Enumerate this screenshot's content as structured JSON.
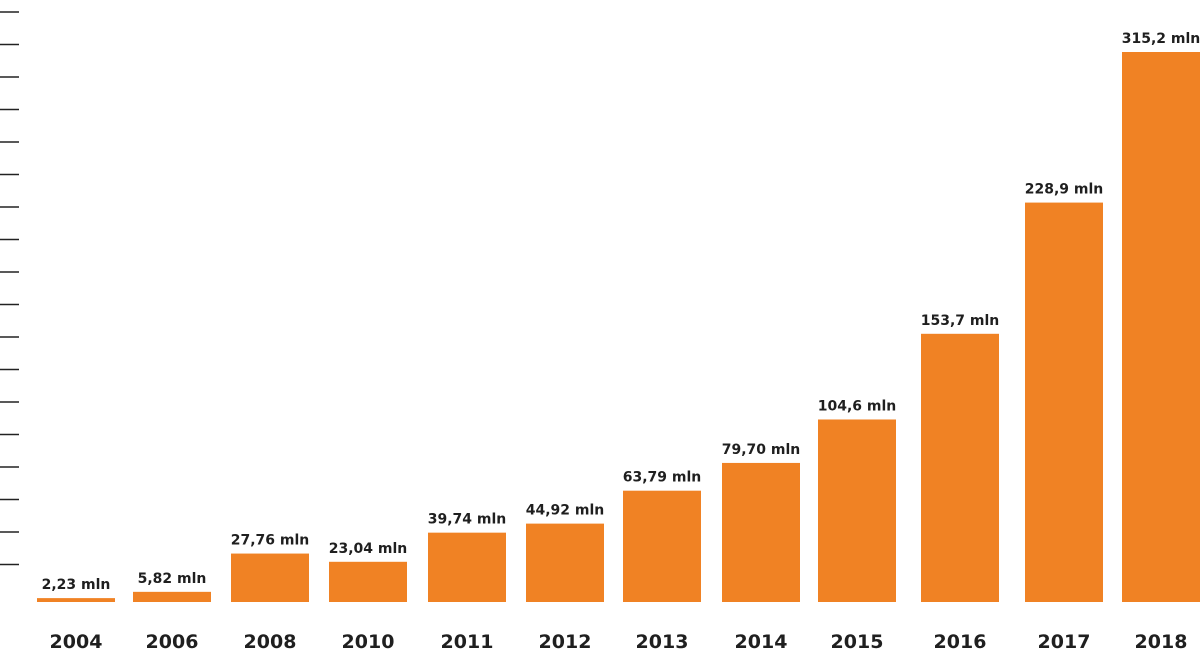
{
  "chart_data": {
    "type": "bar",
    "title": "",
    "xlabel": "",
    "ylabel": "",
    "categories": [
      "2004",
      "2006",
      "2008",
      "2010",
      "2011",
      "2012",
      "2013",
      "2014",
      "2015",
      "2016",
      "2017",
      "2018"
    ],
    "values": [
      2.23,
      5.82,
      27.76,
      23.04,
      39.74,
      44.92,
      63.79,
      79.7,
      104.6,
      153.7,
      228.9,
      315.2
    ],
    "value_labels": [
      "2,23 mln",
      "5,82 mln",
      "27,76 mln",
      "23,04 mln",
      "39,74 mln",
      "44,92 mln",
      "63,79 mln",
      "79,70 mln",
      "104,6 mln",
      "153,7 mln",
      "228,9 mln",
      "315,2 mln"
    ],
    "bar_color": "#f08224",
    "text_color": "#1f1f1f",
    "axis_color": "#222222",
    "grid": false,
    "y_ticks_labeled": false
  }
}
